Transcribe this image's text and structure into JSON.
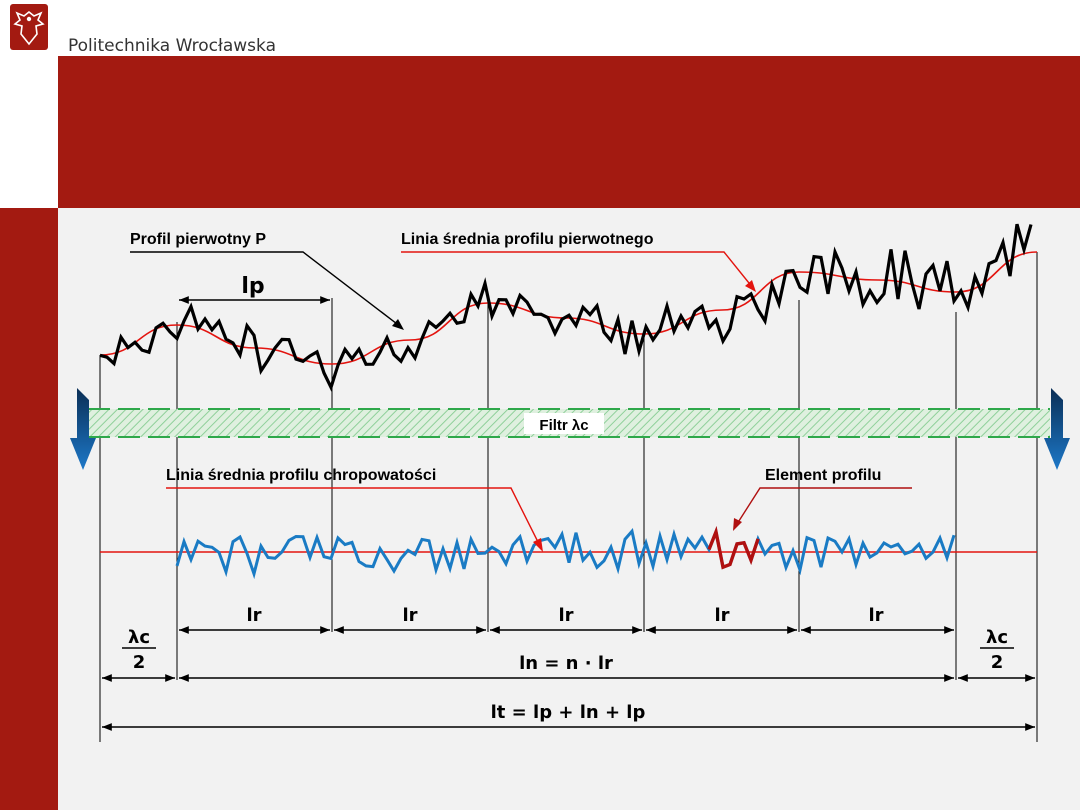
{
  "header": {
    "university_name": "Politechnika Wrocławska",
    "colors": {
      "brand_red": "#a31a11",
      "dark_red": "#8b1a14"
    },
    "logo_icon": "eagle-crest-icon"
  },
  "diagram": {
    "labels": {
      "primary_profile": "Profil pierwotny P",
      "primary_mean_line": "Linia średnia profilu pierwotnego",
      "filter": "Filtr λc",
      "roughness_mean_line": "Linia średnia profilu chropowatości",
      "profile_element": "Element profilu",
      "lp": "lp",
      "lr": "lr",
      "lambda_c": "λc",
      "two": "2",
      "ln_formula": "ln = n · lr",
      "lt_formula": "lt = lp + ln + lp"
    },
    "colors": {
      "primary_profile": "#000000",
      "mean_line": "#e3140f",
      "roughness_profile": "#1a7bc4",
      "profile_element": "#b01010",
      "filter_band": "#2ea84a",
      "filter_arrow": "#0a3d6b"
    },
    "sampling_lengths_count": 5
  }
}
